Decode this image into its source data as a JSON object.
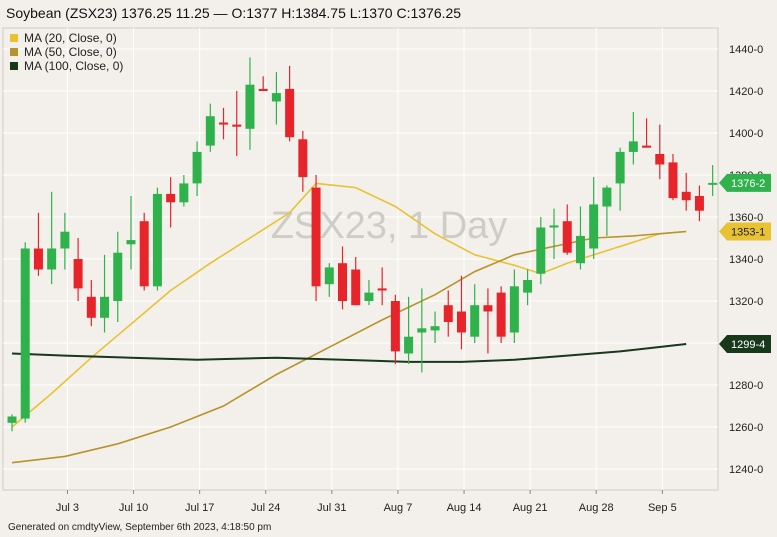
{
  "header": {
    "title": "Soybean (ZSX23) 1376.25 11.25 — O:1377 H:1384.75 L:1370 C:1376.25"
  },
  "legend": [
    {
      "label": "MA (20, Close, 0)",
      "color": "#e8c232"
    },
    {
      "label": "MA (50, Close, 0)",
      "color": "#b8922a"
    },
    {
      "label": "MA (100, Close, 0)",
      "color": "#17381a"
    }
  ],
  "watermark": "ZSX23, 1 Day",
  "footer": "Generated on cmdtyView, September 6th 2023, 4:18:50 pm",
  "colors": {
    "background": "#f3f0eb",
    "grid": "#ffffff",
    "up": "#2fb24c",
    "down": "#e8242b",
    "ma20": "#e8c232",
    "ma50": "#b8922a",
    "ma100": "#17381a"
  },
  "chart_data": {
    "type": "candlestick",
    "symbol": "ZSX23",
    "interval": "1 Day",
    "ylim": [
      1230,
      1450
    ],
    "yticks": [
      1240,
      1260,
      1280,
      1300,
      1320,
      1340,
      1360,
      1380,
      1400,
      1420,
      1440
    ],
    "ytick_labels": [
      "1240-0",
      "1260-0",
      "1280-0",
      "1300-0",
      "1320-0",
      "1340-0",
      "1360-0",
      "1380-0",
      "1400-0",
      "1420-0",
      "1440-0"
    ],
    "xticks": [
      {
        "index": 2,
        "label": "Jul 3"
      },
      {
        "index": 7,
        "label": "Jul 10"
      },
      {
        "index": 12,
        "label": "Jul 17"
      },
      {
        "index": 17,
        "label": "Jul 24"
      },
      {
        "index": 22,
        "label": "Jul 31"
      },
      {
        "index": 27,
        "label": "Aug 7"
      },
      {
        "index": 32,
        "label": "Aug 14"
      },
      {
        "index": 37,
        "label": "Aug 21"
      },
      {
        "index": 42,
        "label": "Aug 28"
      },
      {
        "index": 47,
        "label": "Sep 5"
      }
    ],
    "candles": [
      [
        1262,
        1265,
        1258,
        1266
      ],
      [
        1264,
        1345,
        1262,
        1348
      ],
      [
        1345,
        1335,
        1332,
        1362
      ],
      [
        1335,
        1345,
        1328,
        1372
      ],
      [
        1345,
        1353,
        1335,
        1362
      ],
      [
        1340,
        1326,
        1320,
        1350
      ],
      [
        1322,
        1312,
        1308,
        1330
      ],
      [
        1312,
        1322,
        1305,
        1342
      ],
      [
        1320,
        1343,
        1310,
        1353
      ],
      [
        1347,
        1349,
        1335,
        1370
      ],
      [
        1358,
        1327,
        1325,
        1362
      ],
      [
        1327,
        1371,
        1325,
        1374
      ],
      [
        1371,
        1367,
        1355,
        1379
      ],
      [
        1367,
        1376,
        1365,
        1380
      ],
      [
        1376,
        1391,
        1370,
        1396
      ],
      [
        1394,
        1408,
        1391,
        1414
      ],
      [
        1405,
        1404,
        1397,
        1412
      ],
      [
        1404,
        1403,
        1389,
        1420
      ],
      [
        1402,
        1423,
        1392,
        1436
      ],
      [
        1421,
        1420,
        1420,
        1427
      ],
      [
        1415,
        1419,
        1404,
        1429
      ],
      [
        1421,
        1398,
        1396,
        1432
      ],
      [
        1397,
        1379,
        1372,
        1401
      ],
      [
        1374,
        1327,
        1320,
        1380
      ],
      [
        1328,
        1336,
        1322,
        1338
      ],
      [
        1338,
        1320,
        1316,
        1346
      ],
      [
        1335,
        1318,
        1318,
        1341
      ],
      [
        1320,
        1324,
        1318,
        1330
      ],
      [
        1326,
        1325,
        1318,
        1336
      ],
      [
        1320,
        1296,
        1290,
        1323
      ],
      [
        1295,
        1303,
        1290,
        1322
      ],
      [
        1305,
        1307,
        1286,
        1326
      ],
      [
        1306,
        1308,
        1300,
        1315
      ],
      [
        1318,
        1310,
        1303,
        1325
      ],
      [
        1315,
        1305,
        1297,
        1332
      ],
      [
        1303,
        1318,
        1300,
        1328
      ],
      [
        1318,
        1315,
        1295,
        1326
      ],
      [
        1324,
        1303,
        1300,
        1327
      ],
      [
        1305,
        1327,
        1300,
        1335
      ],
      [
        1324,
        1330,
        1318,
        1335
      ],
      [
        1333,
        1355,
        1328,
        1360
      ],
      [
        1355,
        1356,
        1340,
        1364
      ],
      [
        1358,
        1343,
        1342,
        1366
      ],
      [
        1338,
        1351,
        1335,
        1365
      ],
      [
        1345,
        1366,
        1340,
        1379
      ],
      [
        1365,
        1374,
        1351,
        1375
      ],
      [
        1376,
        1391,
        1363,
        1393
      ],
      [
        1391,
        1396,
        1385,
        1410
      ],
      [
        1394,
        1393,
        1393,
        1407
      ],
      [
        1390,
        1385,
        1378,
        1404
      ],
      [
        1386,
        1369,
        1368,
        1390
      ],
      [
        1372,
        1368,
        1363,
        1381
      ],
      [
        1370,
        1363,
        1358,
        1375
      ],
      [
        1376,
        1376.25,
        1370,
        1384.75
      ]
    ],
    "ma": [
      {
        "name": "MA (20, Close, 0)",
        "last": "1353-1",
        "points": [
          [
            0,
            1260
          ],
          [
            3,
            1276
          ],
          [
            6,
            1293
          ],
          [
            9,
            1309
          ],
          [
            12,
            1325
          ],
          [
            15,
            1338
          ],
          [
            18,
            1350
          ],
          [
            21,
            1362
          ],
          [
            23,
            1376
          ],
          [
            26,
            1374
          ],
          [
            29,
            1365
          ],
          [
            32,
            1352
          ],
          [
            35,
            1342
          ],
          [
            38,
            1337
          ],
          [
            40,
            1333
          ],
          [
            42,
            1338
          ],
          [
            45,
            1344
          ],
          [
            49,
            1352
          ],
          [
            51,
            1353.1
          ]
        ]
      },
      {
        "name": "MA (50, Close, 0)",
        "last": "1353-1",
        "points": [
          [
            0,
            1243
          ],
          [
            4,
            1246
          ],
          [
            8,
            1252
          ],
          [
            12,
            1260
          ],
          [
            16,
            1270
          ],
          [
            20,
            1285
          ],
          [
            24,
            1298
          ],
          [
            28,
            1311
          ],
          [
            32,
            1323
          ],
          [
            35,
            1334
          ],
          [
            38,
            1342
          ],
          [
            41,
            1346
          ],
          [
            44,
            1350
          ],
          [
            47,
            1351
          ],
          [
            51,
            1353.1
          ]
        ]
      },
      {
        "name": "MA (100, Close, 0)",
        "last": "1299-4",
        "points": [
          [
            0,
            1295
          ],
          [
            4,
            1294
          ],
          [
            9,
            1293
          ],
          [
            14,
            1292
          ],
          [
            20,
            1293
          ],
          [
            25,
            1292
          ],
          [
            30,
            1291
          ],
          [
            34,
            1291
          ],
          [
            38,
            1292
          ],
          [
            42,
            1294
          ],
          [
            46,
            1296
          ],
          [
            51,
            1299.5
          ]
        ]
      }
    ],
    "price_labels": [
      {
        "text": "1376-2",
        "value": 1376.25,
        "color": "#2fb24c"
      },
      {
        "text": "1353-1",
        "value": 1353.1,
        "color": "#e8c232"
      },
      {
        "text": "1299-4",
        "value": 1299.5,
        "color": "#17381a"
      }
    ]
  }
}
